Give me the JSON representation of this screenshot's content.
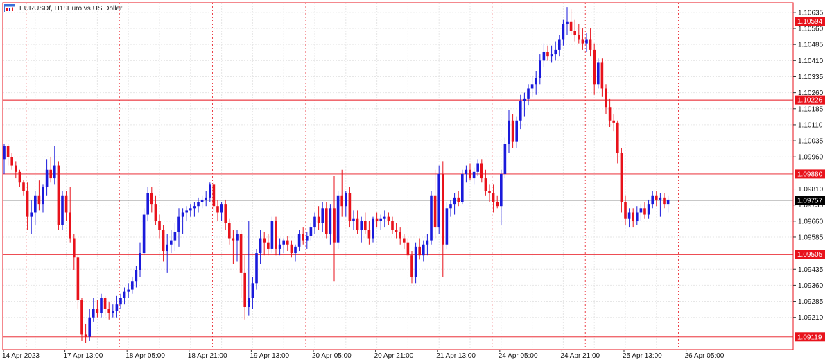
{
  "window": {
    "symbol": "EURUSDf",
    "timeframe": "H1",
    "description": "Euro vs US Dollar",
    "title_text": "EURUSDf, H1:  Euro vs US Dollar"
  },
  "colors": {
    "bull": "#1a1adb",
    "bear": "#e8121b",
    "level_line": "#e8121b",
    "current_price_line": "#222222",
    "session_separator": "#e8121b",
    "grid": "#e6e6e6",
    "frame": "#e8121b"
  },
  "chart_data": {
    "type": "candlestick",
    "title": "EURUSDf, H1:  Euro vs US Dollar",
    "ylim": [
      1.0906,
      1.1068
    ],
    "grid": true,
    "y_tick_labels": [
      "1.10635",
      "1.10560",
      "1.10485",
      "1.10410",
      "1.10335",
      "1.10260",
      "1.10185",
      "1.10110",
      "1.10035",
      "1.09960",
      "1.09810",
      "1.09735",
      "1.09660",
      "1.09585",
      "1.09435",
      "1.09360",
      "1.09285",
      "1.09210"
    ],
    "x_tick_labels": [
      "14 Apr 2023",
      "17 Apr 13:00",
      "18 Apr 05:00",
      "18 Apr 21:00",
      "19 Apr 13:00",
      "20 Apr 05:00",
      "20 Apr 21:00",
      "21 Apr 13:00",
      "24 Apr 05:00",
      "24 Apr 21:00",
      "25 Apr 13:00",
      "26 Apr 05:00"
    ],
    "x_tick_bar_index": [
      0,
      16,
      32,
      48,
      64,
      80,
      96,
      112,
      128,
      144,
      160,
      176
    ],
    "horizontal_levels": [
      {
        "price": 1.10594,
        "label": "1.10594"
      },
      {
        "price": 1.10226,
        "label": "1.10226"
      },
      {
        "price": 1.0988,
        "label": "1.09880"
      },
      {
        "price": 1.09505,
        "label": "1.09505"
      },
      {
        "price": 1.09119,
        "label": "1.09119"
      }
    ],
    "current_price": {
      "price": 1.09757,
      "label": "1.09757"
    },
    "separator_bar_index": [
      3,
      27,
      51,
      75,
      99,
      123,
      147,
      171
    ],
    "candles": [
      {
        "o": 1.0995,
        "h": 1.1002,
        "l": 1.0988,
        "c": 1.1001
      },
      {
        "o": 1.1001,
        "h": 1.1002,
        "l": 1.0992,
        "c": 1.0996
      },
      {
        "o": 1.0996,
        "h": 1.0998,
        "l": 1.099,
        "c": 1.0992
      },
      {
        "o": 1.0992,
        "h": 1.0994,
        "l": 1.0986,
        "c": 1.0989
      },
      {
        "o": 1.0989,
        "h": 1.099,
        "l": 1.0982,
        "c": 1.0984
      },
      {
        "o": 1.0984,
        "h": 1.0985,
        "l": 1.0978,
        "c": 1.098
      },
      {
        "o": 1.098,
        "h": 1.0984,
        "l": 1.0962,
        "c": 1.0968
      },
      {
        "o": 1.0968,
        "h": 1.0976,
        "l": 1.096,
        "c": 1.097
      },
      {
        "o": 1.097,
        "h": 1.098,
        "l": 1.0964,
        "c": 1.0978
      },
      {
        "o": 1.0978,
        "h": 1.0985,
        "l": 1.0971,
        "c": 1.0974
      },
      {
        "o": 1.0974,
        "h": 1.0983,
        "l": 1.097,
        "c": 1.0982
      },
      {
        "o": 1.0982,
        "h": 1.0995,
        "l": 1.0978,
        "c": 1.099
      },
      {
        "o": 1.099,
        "h": 1.0996,
        "l": 1.0984,
        "c": 1.0986
      },
      {
        "o": 1.0986,
        "h": 1.1001,
        "l": 1.0983,
        "c": 1.0992
      },
      {
        "o": 1.0992,
        "h": 1.0994,
        "l": 1.0962,
        "c": 1.0964
      },
      {
        "o": 1.0964,
        "h": 1.098,
        "l": 1.0962,
        "c": 1.0978
      },
      {
        "o": 1.0978,
        "h": 1.098,
        "l": 1.0966,
        "c": 1.097
      },
      {
        "o": 1.097,
        "h": 1.0982,
        "l": 1.0956,
        "c": 1.0958
      },
      {
        "o": 1.0958,
        "h": 1.096,
        "l": 1.0943,
        "c": 1.0949
      },
      {
        "o": 1.0949,
        "h": 1.095,
        "l": 1.0925,
        "c": 1.0929
      },
      {
        "o": 1.0929,
        "h": 1.093,
        "l": 1.091,
        "c": 1.0913
      },
      {
        "o": 1.0913,
        "h": 1.0918,
        "l": 1.0909,
        "c": 1.0912
      },
      {
        "o": 1.0912,
        "h": 1.0925,
        "l": 1.091,
        "c": 1.0921
      },
      {
        "o": 1.0921,
        "h": 1.093,
        "l": 1.0919,
        "c": 1.0925
      },
      {
        "o": 1.0925,
        "h": 1.0929,
        "l": 1.0921,
        "c": 1.0923
      },
      {
        "o": 1.0923,
        "h": 1.0932,
        "l": 1.0921,
        "c": 1.093
      },
      {
        "o": 1.093,
        "h": 1.0931,
        "l": 1.0922,
        "c": 1.0925
      },
      {
        "o": 1.0925,
        "h": 1.0928,
        "l": 1.092,
        "c": 1.0923
      },
      {
        "o": 1.0923,
        "h": 1.0927,
        "l": 1.0921,
        "c": 1.0924
      },
      {
        "o": 1.0924,
        "h": 1.0931,
        "l": 1.0921,
        "c": 1.0927
      },
      {
        "o": 1.0927,
        "h": 1.0932,
        "l": 1.0925,
        "c": 1.093
      },
      {
        "o": 1.093,
        "h": 1.0935,
        "l": 1.0927,
        "c": 1.0933
      },
      {
        "o": 1.0933,
        "h": 1.0937,
        "l": 1.093,
        "c": 1.0934
      },
      {
        "o": 1.0934,
        "h": 1.094,
        "l": 1.0932,
        "c": 1.0938
      },
      {
        "o": 1.0938,
        "h": 1.0945,
        "l": 1.0935,
        "c": 1.0943
      },
      {
        "o": 1.0943,
        "h": 1.0956,
        "l": 1.094,
        "c": 1.0951
      },
      {
        "o": 1.0951,
        "h": 1.0972,
        "l": 1.095,
        "c": 1.0969
      },
      {
        "o": 1.0969,
        "h": 1.0982,
        "l": 1.0966,
        "c": 1.0979
      },
      {
        "o": 1.0979,
        "h": 1.0982,
        "l": 1.097,
        "c": 1.0974
      },
      {
        "o": 1.0974,
        "h": 1.0978,
        "l": 1.0964,
        "c": 1.0966
      },
      {
        "o": 1.0966,
        "h": 1.0969,
        "l": 1.0958,
        "c": 1.0962
      },
      {
        "o": 1.0962,
        "h": 1.0964,
        "l": 1.0947,
        "c": 1.0952
      },
      {
        "o": 1.0952,
        "h": 1.096,
        "l": 1.0942,
        "c": 1.0955
      },
      {
        "o": 1.0955,
        "h": 1.0962,
        "l": 1.0951,
        "c": 1.0957
      },
      {
        "o": 1.0957,
        "h": 1.0965,
        "l": 1.0952,
        "c": 1.0961
      },
      {
        "o": 1.0961,
        "h": 1.0972,
        "l": 1.0954,
        "c": 1.0968
      },
      {
        "o": 1.0968,
        "h": 1.0972,
        "l": 1.096,
        "c": 1.097
      },
      {
        "o": 1.097,
        "h": 1.0973,
        "l": 1.0966,
        "c": 1.0971
      },
      {
        "o": 1.0971,
        "h": 1.0974,
        "l": 1.0968,
        "c": 1.0972
      },
      {
        "o": 1.0972,
        "h": 1.0975,
        "l": 1.0968,
        "c": 1.0973
      },
      {
        "o": 1.0973,
        "h": 1.0977,
        "l": 1.097,
        "c": 1.0975
      },
      {
        "o": 1.0975,
        "h": 1.0978,
        "l": 1.0972,
        "c": 1.0976
      },
      {
        "o": 1.0976,
        "h": 1.098,
        "l": 1.0973,
        "c": 1.0977
      },
      {
        "o": 1.0977,
        "h": 1.0984,
        "l": 1.0975,
        "c": 1.0983
      },
      {
        "o": 1.0983,
        "h": 1.0984,
        "l": 1.0971,
        "c": 1.0973
      },
      {
        "o": 1.0973,
        "h": 1.0976,
        "l": 1.0966,
        "c": 1.097
      },
      {
        "o": 1.097,
        "h": 1.0975,
        "l": 1.0966,
        "c": 1.0974
      },
      {
        "o": 1.0974,
        "h": 1.0976,
        "l": 1.0962,
        "c": 1.0965
      },
      {
        "o": 1.0965,
        "h": 1.0967,
        "l": 1.0955,
        "c": 1.0958
      },
      {
        "o": 1.0958,
        "h": 1.0962,
        "l": 1.0946,
        "c": 1.0957
      },
      {
        "o": 1.0957,
        "h": 1.0962,
        "l": 1.0947,
        "c": 1.096
      },
      {
        "o": 1.096,
        "h": 1.0962,
        "l": 1.093,
        "c": 1.0942
      },
      {
        "o": 1.0942,
        "h": 1.095,
        "l": 1.092,
        "c": 1.0926
      },
      {
        "o": 1.0926,
        "h": 1.0966,
        "l": 1.0922,
        "c": 1.093
      },
      {
        "o": 1.093,
        "h": 1.094,
        "l": 1.0925,
        "c": 1.0937
      },
      {
        "o": 1.0937,
        "h": 1.0953,
        "l": 1.0934,
        "c": 1.0951
      },
      {
        "o": 1.0951,
        "h": 1.0962,
        "l": 1.0946,
        "c": 1.0958
      },
      {
        "o": 1.0958,
        "h": 1.0961,
        "l": 1.095,
        "c": 1.0956
      },
      {
        "o": 1.0956,
        "h": 1.096,
        "l": 1.095,
        "c": 1.0953
      },
      {
        "o": 1.0953,
        "h": 1.0968,
        "l": 1.0951,
        "c": 1.0966
      },
      {
        "o": 1.0966,
        "h": 1.0968,
        "l": 1.095,
        "c": 1.0953
      },
      {
        "o": 1.0953,
        "h": 1.0958,
        "l": 1.095,
        "c": 1.0955
      },
      {
        "o": 1.0955,
        "h": 1.0958,
        "l": 1.0951,
        "c": 1.0957
      },
      {
        "o": 1.0957,
        "h": 1.0959,
        "l": 1.0952,
        "c": 1.0955
      },
      {
        "o": 1.0955,
        "h": 1.0957,
        "l": 1.0949,
        "c": 1.0951
      },
      {
        "o": 1.0951,
        "h": 1.0955,
        "l": 1.0947,
        "c": 1.0954
      },
      {
        "o": 1.0954,
        "h": 1.0962,
        "l": 1.0952,
        "c": 1.096
      },
      {
        "o": 1.096,
        "h": 1.0963,
        "l": 1.0955,
        "c": 1.0957
      },
      {
        "o": 1.0957,
        "h": 1.0961,
        "l": 1.0953,
        "c": 1.0959
      },
      {
        "o": 1.0959,
        "h": 1.0965,
        "l": 1.0957,
        "c": 1.0963
      },
      {
        "o": 1.0963,
        "h": 1.097,
        "l": 1.096,
        "c": 1.0968
      },
      {
        "o": 1.0968,
        "h": 1.0973,
        "l": 1.0962,
        "c": 1.0965
      },
      {
        "o": 1.0965,
        "h": 1.0975,
        "l": 1.0961,
        "c": 1.0972
      },
      {
        "o": 1.0972,
        "h": 1.0975,
        "l": 1.0958,
        "c": 1.096
      },
      {
        "o": 1.096,
        "h": 1.0974,
        "l": 1.0955,
        "c": 1.0972
      },
      {
        "o": 1.0972,
        "h": 1.0987,
        "l": 1.0938,
        "c": 1.0956
      },
      {
        "o": 1.0956,
        "h": 1.098,
        "l": 1.0953,
        "c": 1.0978
      },
      {
        "o": 1.0978,
        "h": 1.099,
        "l": 1.0968,
        "c": 1.0973
      },
      {
        "o": 1.0973,
        "h": 1.098,
        "l": 1.0968,
        "c": 1.0979
      },
      {
        "o": 1.0979,
        "h": 1.0982,
        "l": 1.0963,
        "c": 1.0966
      },
      {
        "o": 1.0966,
        "h": 1.0971,
        "l": 1.0962,
        "c": 1.0967
      },
      {
        "o": 1.0967,
        "h": 1.0971,
        "l": 1.096,
        "c": 1.0962
      },
      {
        "o": 1.0962,
        "h": 1.0968,
        "l": 1.0956,
        "c": 1.0966
      },
      {
        "o": 1.0966,
        "h": 1.097,
        "l": 1.096,
        "c": 1.0962
      },
      {
        "o": 1.0962,
        "h": 1.0966,
        "l": 1.0955,
        "c": 1.0958
      },
      {
        "o": 1.0958,
        "h": 1.0968,
        "l": 1.0956,
        "c": 1.0967
      },
      {
        "o": 1.0967,
        "h": 1.097,
        "l": 1.0963,
        "c": 1.0966
      },
      {
        "o": 1.0966,
        "h": 1.0969,
        "l": 1.0962,
        "c": 1.0967
      },
      {
        "o": 1.0967,
        "h": 1.0971,
        "l": 1.0963,
        "c": 1.0968
      },
      {
        "o": 1.0968,
        "h": 1.097,
        "l": 1.0964,
        "c": 1.0966
      },
      {
        "o": 1.0966,
        "h": 1.0968,
        "l": 1.096,
        "c": 1.0962
      },
      {
        "o": 1.0962,
        "h": 1.0965,
        "l": 1.0958,
        "c": 1.0961
      },
      {
        "o": 1.0961,
        "h": 1.0963,
        "l": 1.0955,
        "c": 1.0958
      },
      {
        "o": 1.0958,
        "h": 1.096,
        "l": 1.0953,
        "c": 1.0956
      },
      {
        "o": 1.0956,
        "h": 1.0958,
        "l": 1.0948,
        "c": 1.095
      },
      {
        "o": 1.095,
        "h": 1.0952,
        "l": 1.0937,
        "c": 1.094
      },
      {
        "o": 1.094,
        "h": 1.0956,
        "l": 1.0937,
        "c": 1.0954
      },
      {
        "o": 1.0954,
        "h": 1.0958,
        "l": 1.0948,
        "c": 1.095
      },
      {
        "o": 1.095,
        "h": 1.0957,
        "l": 1.0947,
        "c": 1.0955
      },
      {
        "o": 1.0955,
        "h": 1.096,
        "l": 1.095,
        "c": 1.0957
      },
      {
        "o": 1.0957,
        "h": 1.098,
        "l": 1.0955,
        "c": 1.0978
      },
      {
        "o": 1.0978,
        "h": 1.099,
        "l": 1.0958,
        "c": 1.0963
      },
      {
        "o": 1.0963,
        "h": 1.0992,
        "l": 1.096,
        "c": 1.0988
      },
      {
        "o": 1.0988,
        "h": 1.0994,
        "l": 1.094,
        "c": 1.0955
      },
      {
        "o": 1.0955,
        "h": 1.0975,
        "l": 1.0953,
        "c": 1.0972
      },
      {
        "o": 1.0972,
        "h": 1.0976,
        "l": 1.0968,
        "c": 1.0974
      },
      {
        "o": 1.0974,
        "h": 1.0979,
        "l": 1.0969,
        "c": 1.0977
      },
      {
        "o": 1.0977,
        "h": 1.098,
        "l": 1.0973,
        "c": 1.0975
      },
      {
        "o": 1.0975,
        "h": 1.099,
        "l": 1.0974,
        "c": 1.0988
      },
      {
        "o": 1.0988,
        "h": 1.0992,
        "l": 1.0984,
        "c": 1.099
      },
      {
        "o": 1.099,
        "h": 1.0993,
        "l": 1.0985,
        "c": 1.0986
      },
      {
        "o": 1.0986,
        "h": 1.0991,
        "l": 1.0983,
        "c": 1.0989
      },
      {
        "o": 1.0989,
        "h": 1.0995,
        "l": 1.0987,
        "c": 1.0993
      },
      {
        "o": 1.0993,
        "h": 1.0995,
        "l": 1.0984,
        "c": 1.0986
      },
      {
        "o": 1.0986,
        "h": 1.099,
        "l": 1.0978,
        "c": 1.098
      },
      {
        "o": 1.098,
        "h": 1.0983,
        "l": 1.0975,
        "c": 1.0979
      },
      {
        "o": 1.0979,
        "h": 1.0983,
        "l": 1.097,
        "c": 1.0975
      },
      {
        "o": 1.0975,
        "h": 1.0978,
        "l": 1.0972,
        "c": 1.0973
      },
      {
        "o": 1.0973,
        "h": 1.099,
        "l": 1.0964,
        "c": 1.0988
      },
      {
        "o": 1.0988,
        "h": 1.1005,
        "l": 1.0986,
        "c": 1.1002
      },
      {
        "o": 1.1002,
        "h": 1.1018,
        "l": 1.0998,
        "c": 1.1013
      },
      {
        "o": 1.1013,
        "h": 1.1016,
        "l": 1.1,
        "c": 1.1003
      },
      {
        "o": 1.1003,
        "h": 1.1015,
        "l": 1.1,
        "c": 1.1013
      },
      {
        "o": 1.1013,
        "h": 1.1025,
        "l": 1.1009,
        "c": 1.1022
      },
      {
        "o": 1.1022,
        "h": 1.1026,
        "l": 1.1015,
        "c": 1.1023
      },
      {
        "o": 1.1023,
        "h": 1.103,
        "l": 1.102,
        "c": 1.1028
      },
      {
        "o": 1.1028,
        "h": 1.1034,
        "l": 1.1024,
        "c": 1.103
      },
      {
        "o": 1.103,
        "h": 1.1036,
        "l": 1.1025,
        "c": 1.1033
      },
      {
        "o": 1.1033,
        "h": 1.1044,
        "l": 1.103,
        "c": 1.1041
      },
      {
        "o": 1.1041,
        "h": 1.1049,
        "l": 1.1038,
        "c": 1.1045
      },
      {
        "o": 1.1045,
        "h": 1.1048,
        "l": 1.1041,
        "c": 1.1043
      },
      {
        "o": 1.1043,
        "h": 1.1048,
        "l": 1.104,
        "c": 1.1044
      },
      {
        "o": 1.1044,
        "h": 1.105,
        "l": 1.1041,
        "c": 1.1046
      },
      {
        "o": 1.1046,
        "h": 1.1053,
        "l": 1.1043,
        "c": 1.1051
      },
      {
        "o": 1.1051,
        "h": 1.106,
        "l": 1.1048,
        "c": 1.1058
      },
      {
        "o": 1.1058,
        "h": 1.1066,
        "l": 1.1053,
        "c": 1.1059
      },
      {
        "o": 1.1059,
        "h": 1.1065,
        "l": 1.1053,
        "c": 1.1055
      },
      {
        "o": 1.1055,
        "h": 1.106,
        "l": 1.105,
        "c": 1.1053
      },
      {
        "o": 1.1053,
        "h": 1.1058,
        "l": 1.1049,
        "c": 1.1051
      },
      {
        "o": 1.1051,
        "h": 1.1056,
        "l": 1.1046,
        "c": 1.1049
      },
      {
        "o": 1.1049,
        "h": 1.1054,
        "l": 1.1045,
        "c": 1.1051
      },
      {
        "o": 1.1051,
        "h": 1.1056,
        "l": 1.1043,
        "c": 1.1046
      },
      {
        "o": 1.1046,
        "h": 1.1049,
        "l": 1.1025,
        "c": 1.103
      },
      {
        "o": 1.103,
        "h": 1.1042,
        "l": 1.1028,
        "c": 1.104
      },
      {
        "o": 1.104,
        "h": 1.1042,
        "l": 1.1024,
        "c": 1.1028
      },
      {
        "o": 1.1028,
        "h": 1.103,
        "l": 1.1016,
        "c": 1.1019
      },
      {
        "o": 1.1019,
        "h": 1.1023,
        "l": 1.101,
        "c": 1.1013
      },
      {
        "o": 1.1013,
        "h": 1.1016,
        "l": 1.1008,
        "c": 1.1012
      },
      {
        "o": 1.1012,
        "h": 1.1013,
        "l": 1.0993,
        "c": 1.0998
      },
      {
        "o": 1.0998,
        "h": 1.1,
        "l": 1.097,
        "c": 1.0975
      },
      {
        "o": 1.0975,
        "h": 1.0978,
        "l": 1.0964,
        "c": 1.0967
      },
      {
        "o": 1.0967,
        "h": 1.0972,
        "l": 1.0963,
        "c": 1.097
      },
      {
        "o": 1.097,
        "h": 1.0972,
        "l": 1.0963,
        "c": 1.0966
      },
      {
        "o": 1.0966,
        "h": 1.0973,
        "l": 1.0964,
        "c": 1.097
      },
      {
        "o": 1.097,
        "h": 1.0974,
        "l": 1.0966,
        "c": 1.0972
      },
      {
        "o": 1.0972,
        "h": 1.0975,
        "l": 1.0967,
        "c": 1.0969
      },
      {
        "o": 1.0969,
        "h": 1.0976,
        "l": 1.0967,
        "c": 1.0974
      },
      {
        "o": 1.0974,
        "h": 1.098,
        "l": 1.0972,
        "c": 1.0978
      },
      {
        "o": 1.0978,
        "h": 1.098,
        "l": 1.0973,
        "c": 1.0976
      },
      {
        "o": 1.0976,
        "h": 1.0979,
        "l": 1.0968,
        "c": 1.0977
      },
      {
        "o": 1.0977,
        "h": 1.0979,
        "l": 1.0972,
        "c": 1.0974
      },
      {
        "o": 1.0974,
        "h": 1.0978,
        "l": 1.097,
        "c": 1.0976
      }
    ]
  }
}
